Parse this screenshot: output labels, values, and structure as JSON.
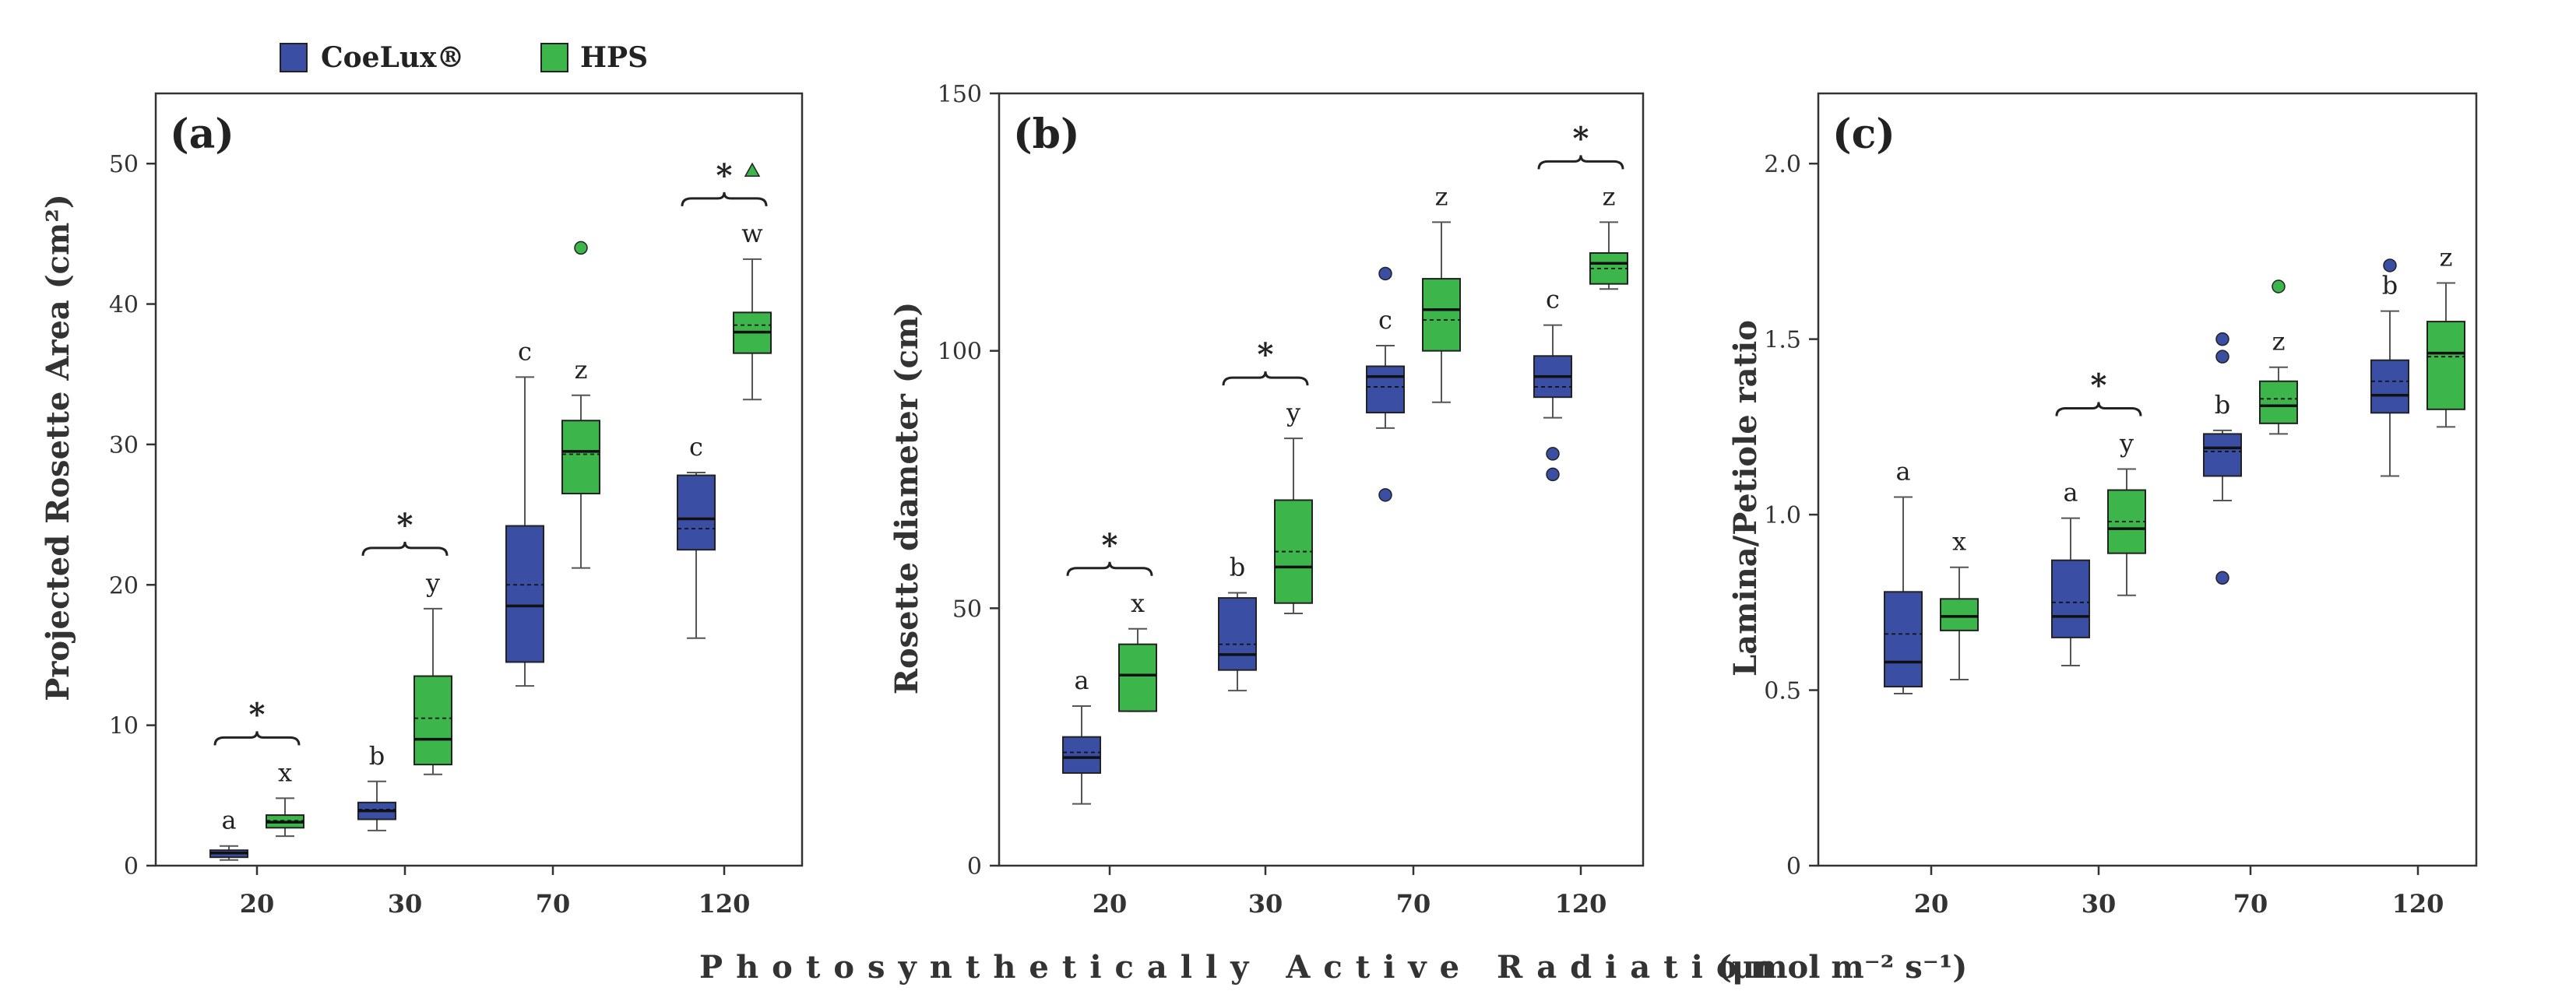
{
  "colors": {
    "coelux": "#3a4ea4",
    "hps": "#3cb54a",
    "frame": "#333333",
    "whisker": "#555555"
  },
  "legend": [
    {
      "name": "CoeLux®",
      "color": "#3a4ea4"
    },
    {
      "name": "HPS",
      "color": "#3cb54a"
    }
  ],
  "xlabel": "Photosynthetically Active Radiation",
  "xlabel_units": "(μmol m⁻² s⁻¹)",
  "chart_data": [
    {
      "type": "box",
      "panel": "(a)",
      "ylabel": "Projected Rosette Area (cm²)",
      "categories": [
        "20",
        "30",
        "70",
        "120"
      ],
      "ylim": [
        0,
        55
      ],
      "yticks": [
        0,
        10,
        20,
        30,
        40,
        50
      ],
      "series": [
        {
          "name": "CoeLux®",
          "boxes": [
            {
              "min": 0.4,
              "q1": 0.6,
              "median": 0.9,
              "mean": 0.9,
              "q3": 1.1,
              "max": 1.4,
              "outliers": [],
              "letter": "a"
            },
            {
              "min": 2.5,
              "q1": 3.3,
              "median": 3.9,
              "mean": 4.0,
              "q3": 4.5,
              "max": 6.0,
              "outliers": [],
              "letter": "b"
            },
            {
              "min": 12.8,
              "q1": 14.5,
              "median": 18.5,
              "mean": 20.0,
              "q3": 24.2,
              "max": 34.8,
              "outliers": [],
              "letter": "c"
            },
            {
              "min": 16.2,
              "q1": 22.5,
              "median": 24.7,
              "mean": 24.0,
              "q3": 27.8,
              "max": 28.0,
              "outliers": [],
              "letter": "c"
            }
          ]
        },
        {
          "name": "HPS",
          "boxes": [
            {
              "min": 2.1,
              "q1": 2.7,
              "median": 3.1,
              "mean": 3.2,
              "q3": 3.6,
              "max": 4.8,
              "outliers": [],
              "letter": "x"
            },
            {
              "min": 6.5,
              "q1": 7.2,
              "median": 9.0,
              "mean": 10.5,
              "q3": 13.5,
              "max": 18.3,
              "outliers": [],
              "letter": "y"
            },
            {
              "min": 21.2,
              "q1": 26.5,
              "median": 29.5,
              "mean": 29.3,
              "q3": 31.7,
              "max": 33.5,
              "outliers": [
                44.0
              ],
              "letter": "z"
            },
            {
              "min": 33.2,
              "q1": 36.5,
              "median": 38.0,
              "mean": 38.5,
              "q3": 39.4,
              "max": 43.2,
              "outliers": [
                49.5
              ],
              "letter": "w"
            }
          ]
        }
      ],
      "significance": [
        0,
        1,
        3
      ]
    },
    {
      "type": "box",
      "panel": "(b)",
      "ylabel": "Rosette diameter (cm)",
      "categories": [
        "20",
        "30",
        "70",
        "120"
      ],
      "ylim": [
        0,
        150
      ],
      "yticks": [
        0,
        50,
        100,
        150
      ],
      "series": [
        {
          "name": "CoeLux®",
          "boxes": [
            {
              "min": 12,
              "q1": 18,
              "median": 21,
              "mean": 22,
              "q3": 25,
              "max": 31,
              "outliers": [],
              "letter": "a"
            },
            {
              "min": 34,
              "q1": 38,
              "median": 41,
              "mean": 43,
              "q3": 52,
              "max": 53,
              "outliers": [],
              "letter": "b"
            },
            {
              "min": 85,
              "q1": 88,
              "median": 95,
              "mean": 93,
              "q3": 97,
              "max": 101,
              "outliers": [
                72,
                115
              ],
              "letter": "c"
            },
            {
              "min": 87,
              "q1": 91,
              "median": 95,
              "mean": 93,
              "q3": 99,
              "max": 105,
              "outliers": [
                76,
                80
              ],
              "letter": "c"
            }
          ]
        },
        {
          "name": "HPS",
          "boxes": [
            {
              "min": 30,
              "q1": 30,
              "median": 37,
              "mean": 37,
              "q3": 43,
              "max": 46,
              "outliers": [],
              "letter": "x"
            },
            {
              "min": 49,
              "q1": 51,
              "median": 58,
              "mean": 61,
              "q3": 71,
              "max": 83,
              "outliers": [],
              "letter": "y"
            },
            {
              "min": 90,
              "q1": 100,
              "median": 108,
              "mean": 106,
              "q3": 114,
              "max": 125,
              "outliers": [],
              "letter": "z"
            },
            {
              "min": 112,
              "q1": 113,
              "median": 117,
              "mean": 116,
              "q3": 119,
              "max": 125,
              "outliers": [],
              "letter": "z"
            }
          ]
        }
      ],
      "significance": [
        0,
        1,
        3
      ]
    },
    {
      "type": "box",
      "panel": "(c)",
      "ylabel": "Lamina/Petiole ratio",
      "categories": [
        "20",
        "30",
        "70",
        "120"
      ],
      "ylim": [
        0,
        2.2
      ],
      "yticks": [
        0,
        0.5,
        1.0,
        1.5,
        2.0
      ],
      "ytick_labels": [
        "0",
        "0.5",
        "1.0",
        "1.5",
        "2.0"
      ],
      "series": [
        {
          "name": "CoeLux®",
          "boxes": [
            {
              "min": 0.49,
              "q1": 0.51,
              "median": 0.58,
              "mean": 0.66,
              "q3": 0.78,
              "max": 1.05,
              "outliers": [],
              "letter": "a"
            },
            {
              "min": 0.57,
              "q1": 0.65,
              "median": 0.71,
              "mean": 0.75,
              "q3": 0.87,
              "max": 0.99,
              "outliers": [],
              "letter": "a"
            },
            {
              "min": 1.04,
              "q1": 1.11,
              "median": 1.19,
              "mean": 1.18,
              "q3": 1.23,
              "max": 1.24,
              "outliers": [
                0.82,
                1.45,
                1.5
              ],
              "letter": "b"
            },
            {
              "min": 1.11,
              "q1": 1.29,
              "median": 1.34,
              "mean": 1.38,
              "q3": 1.44,
              "max": 1.58,
              "outliers": [
                1.71
              ],
              "letter": "b"
            }
          ]
        },
        {
          "name": "HPS",
          "boxes": [
            {
              "min": 0.53,
              "q1": 0.67,
              "median": 0.71,
              "mean": 0.71,
              "q3": 0.76,
              "max": 0.85,
              "outliers": [],
              "letter": "x"
            },
            {
              "min": 0.77,
              "q1": 0.89,
              "median": 0.96,
              "mean": 0.98,
              "q3": 1.07,
              "max": 1.13,
              "outliers": [],
              "letter": "y"
            },
            {
              "min": 1.23,
              "q1": 1.26,
              "median": 1.31,
              "mean": 1.33,
              "q3": 1.38,
              "max": 1.42,
              "outliers": [
                1.65
              ],
              "letter": "z"
            },
            {
              "min": 1.25,
              "q1": 1.3,
              "median": 1.46,
              "mean": 1.45,
              "q3": 1.55,
              "max": 1.66,
              "outliers": [],
              "letter": "z"
            }
          ]
        }
      ],
      "significance": [
        1
      ]
    }
  ]
}
